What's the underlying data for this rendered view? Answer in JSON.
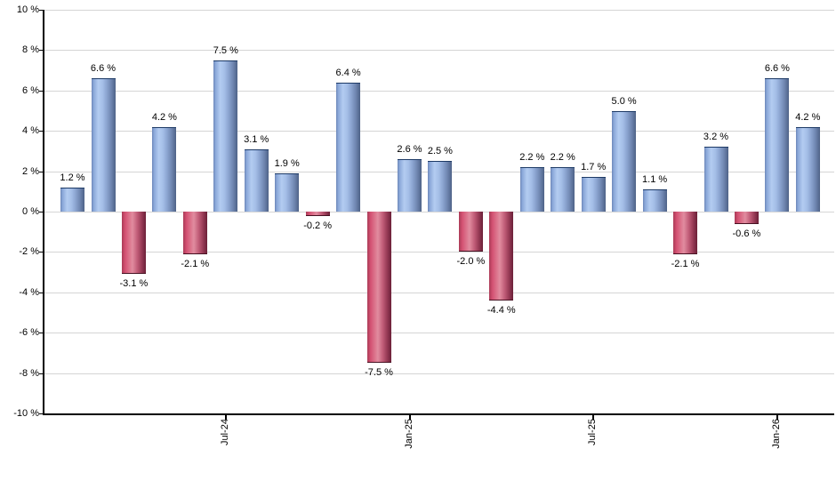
{
  "chart_data": {
    "type": "bar",
    "title": "",
    "xlabel": "",
    "ylabel": "",
    "values": [
      1.2,
      6.6,
      -3.1,
      4.2,
      -2.1,
      7.5,
      3.1,
      1.9,
      -0.2,
      6.4,
      -7.5,
      2.6,
      2.5,
      -2.0,
      -4.4,
      2.2,
      2.2,
      1.7,
      5.0,
      1.1,
      -2.1,
      3.2,
      -0.6,
      6.6,
      4.2
    ],
    "bar_labels": [
      "1.2 %",
      "6.6 %",
      "-3.1 %",
      "4.2 %",
      "-2.1 %",
      "7.5 %",
      "3.1 %",
      "1.9 %",
      "-0.2 %",
      "6.4 %",
      "-7.5 %",
      "2.6 %",
      "2.5 %",
      "-2.0 %",
      "-4.4 %",
      "2.2 %",
      "2.2 %",
      "1.7 %",
      "5.0 %",
      "1.1 %",
      "-2.1 %",
      "3.2 %",
      "-0.6 %",
      "6.6 %",
      "4.2 %"
    ],
    "x_ticks": [
      {
        "bar_index": 5,
        "label": "Jul-24"
      },
      {
        "bar_index": 11,
        "label": "Jan-25"
      },
      {
        "bar_index": 17,
        "label": "Jul-25"
      },
      {
        "bar_index": 23,
        "label": "Jan-26"
      }
    ],
    "ylim": [
      -10,
      10
    ],
    "ytick_step": 2,
    "ytick_labels": [
      "10 %",
      "8 %",
      "6 %",
      "4 %",
      "2 %",
      "0 %",
      "-2 %",
      "-4 %",
      "-6 %",
      "-8 %",
      "-10 %"
    ],
    "grid": true,
    "legend_position": "none",
    "positive_color": "#8FAEDC",
    "negative_color": "#CC4E6E",
    "grid_color": "#D5D5D5",
    "axis_color": "#000000"
  }
}
